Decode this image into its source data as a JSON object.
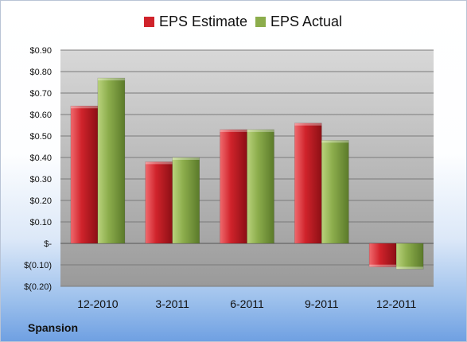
{
  "chart_data": {
    "type": "bar",
    "title": "",
    "xlabel": "",
    "ylabel": "",
    "categories": [
      "12-2010",
      "3-2011",
      "6-2011",
      "9-2011",
      "12-2011"
    ],
    "series": [
      {
        "name": "EPS Estimate",
        "color": "#d0232b",
        "values": [
          0.64,
          0.38,
          0.53,
          0.56,
          -0.11
        ]
      },
      {
        "name": "EPS Actual",
        "color": "#8cad4c",
        "values": [
          0.77,
          0.4,
          0.53,
          0.48,
          -0.12
        ]
      }
    ],
    "ylim": [
      -0.2,
      0.9
    ],
    "yticks": [
      {
        "value": 0.9,
        "label": "$0.90"
      },
      {
        "value": 0.8,
        "label": "$0.80"
      },
      {
        "value": 0.7,
        "label": "$0.70"
      },
      {
        "value": 0.6,
        "label": "$0.60"
      },
      {
        "value": 0.5,
        "label": "$0.50"
      },
      {
        "value": 0.4,
        "label": "$0.40"
      },
      {
        "value": 0.3,
        "label": "$0.30"
      },
      {
        "value": 0.2,
        "label": "$0.20"
      },
      {
        "value": 0.1,
        "label": "$0.10"
      },
      {
        "value": 0.0,
        "label": "$-"
      },
      {
        "value": -0.1,
        "label": "$(0.10)"
      },
      {
        "value": -0.2,
        "label": "$(0.20)"
      }
    ],
    "grid": true,
    "legend": "top"
  },
  "legend": {
    "estimate_label": "EPS Estimate",
    "actual_label": "EPS Actual"
  },
  "company": "Spansion"
}
